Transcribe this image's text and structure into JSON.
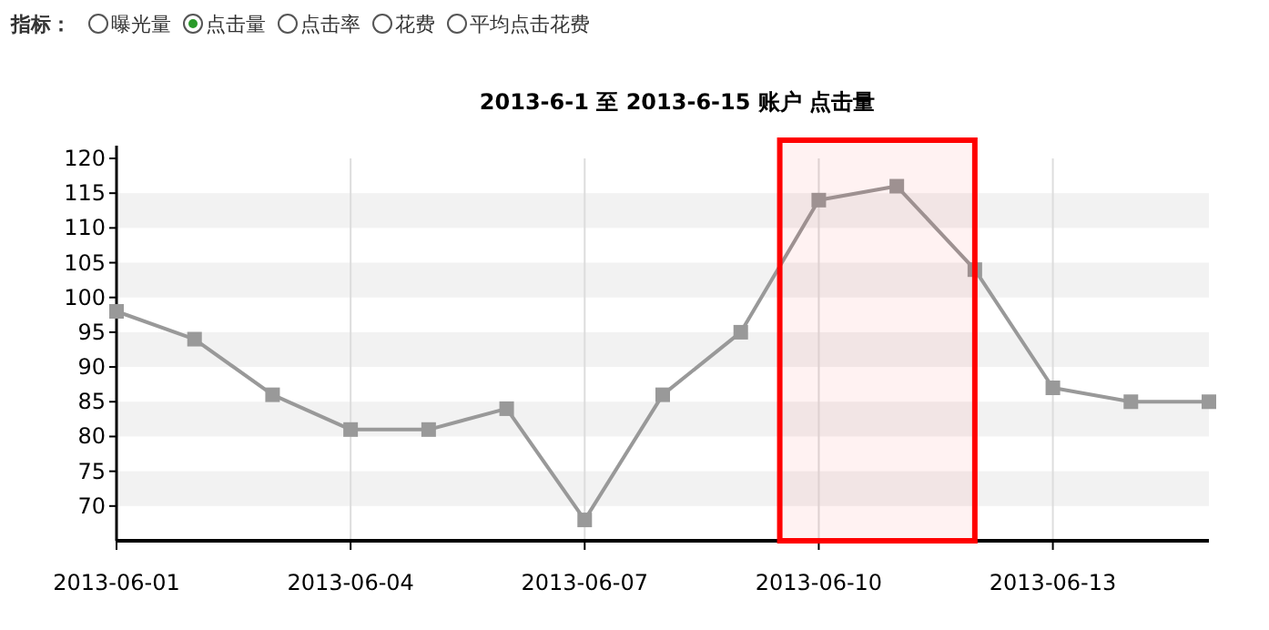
{
  "chart_data": {
    "type": "line",
    "title": "2013-6-1 至 2013-6-15 账户 点击量",
    "annotations": [
      "指标：",
      "曝光量",
      "点击量",
      "点击率",
      "花费",
      "平均点击花费"
    ],
    "x": [
      "2013-06-01",
      "2013-06-02",
      "2013-06-03",
      "2013-06-04",
      "2013-06-05",
      "2013-06-06",
      "2013-06-07",
      "2013-06-08",
      "2013-06-09",
      "2013-06-10",
      "2013-06-11",
      "2013-06-12",
      "2013-06-13",
      "2013-06-14",
      "2013-06-15"
    ],
    "series": [
      {
        "color": "#999999",
        "values": [
          98,
          94,
          86,
          81,
          81,
          84,
          68,
          86,
          95,
          114,
          116,
          104,
          87,
          85,
          85
        ]
      }
    ],
    "xlim": [
      "2013-06-01",
      "2013-06-15"
    ],
    "xticks": [
      "2013-06-01",
      "2013-06-04",
      "2013-06-07",
      "2013-06-10",
      "2013-06-13"
    ],
    "ylim": [
      65,
      120
    ],
    "yticks": [
      70,
      75,
      80,
      85,
      90,
      95,
      100,
      105,
      110,
      115,
      120
    ],
    "bands": [
      {
        "axis": "x",
        "from": "2013-06-09T12:00",
        "to": "2013-06-12",
        "color": "#ff0000"
      }
    ],
    "grid": true,
    "marker": "square",
    "line_style": "solid"
  }
}
